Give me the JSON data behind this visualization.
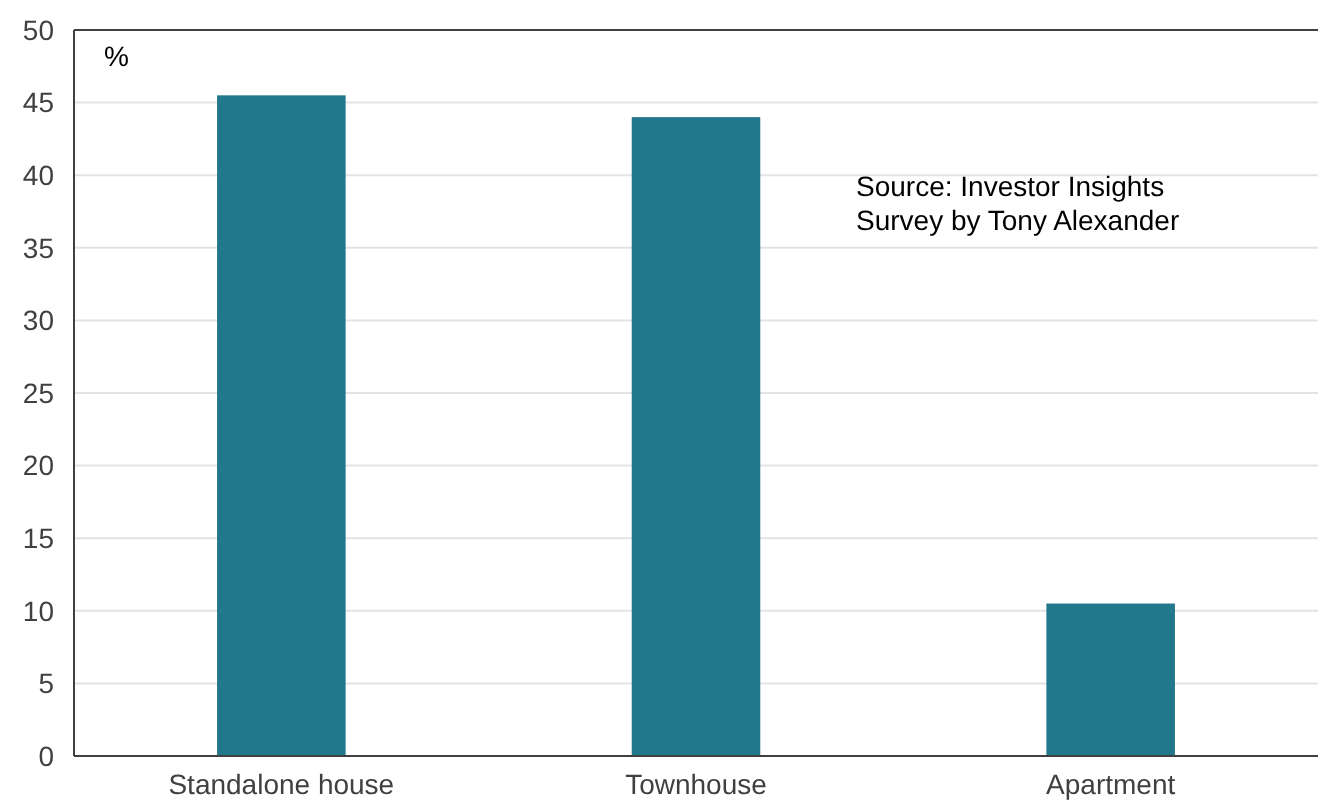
{
  "chart_data": {
    "type": "bar",
    "ylabel": "%",
    "categories": [
      "Standalone house",
      "Townhouse",
      "Apartment"
    ],
    "values": [
      45.5,
      44,
      10.5
    ],
    "color": "#21788a",
    "ylim": [
      0,
      50
    ],
    "yticks": [
      0,
      5,
      10,
      15,
      20,
      25,
      30,
      35,
      40,
      45,
      50
    ],
    "grid": "y",
    "annotations": [
      "Source: Investor Insights Survey by Tony Alexander"
    ]
  }
}
